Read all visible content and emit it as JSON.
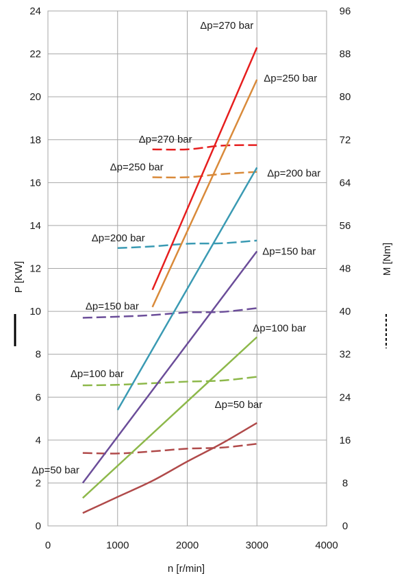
{
  "chart_data": {
    "type": "line",
    "xlabel": "n [r/min]",
    "ylabel_left": "P [KW]",
    "ylabel_right": "M [Nm]",
    "xlim": [
      0,
      4000
    ],
    "xticks": [
      0,
      1000,
      2000,
      3000,
      4000
    ],
    "ylim_left": [
      0,
      24
    ],
    "yticks_left": [
      0,
      2,
      4,
      6,
      8,
      10,
      12,
      14,
      16,
      18,
      20,
      22,
      24
    ],
    "ylim_right": [
      0,
      96
    ],
    "yticks_right": [
      0,
      8,
      16,
      24,
      32,
      40,
      48,
      56,
      64,
      72,
      80,
      88,
      96
    ],
    "grid": true,
    "legend": {
      "solid": "P [KW]",
      "dashed": "M [Nm]"
    },
    "colors": {
      "50": "#b04a4a",
      "100": "#8db84a",
      "150": "#6b4d99",
      "200": "#3a9ab3",
      "250": "#d98a3a",
      "270": "#e61e1e"
    },
    "power_series": [
      {
        "pressure": "50",
        "label": "Δp=50 bar",
        "x": [
          500,
          1000,
          1500,
          2000,
          2500,
          3000
        ],
        "y": [
          0.6,
          1.35,
          2.1,
          3.0,
          3.85,
          4.8
        ]
      },
      {
        "pressure": "100",
        "label": "Δp=100 bar",
        "x": [
          500,
          3000
        ],
        "y": [
          1.3,
          8.8
        ]
      },
      {
        "pressure": "150",
        "label": "Δp=150 bar",
        "x": [
          500,
          3000
        ],
        "y": [
          2.0,
          12.8
        ]
      },
      {
        "pressure": "200",
        "label": "Δp=200 bar",
        "x": [
          1000,
          3000
        ],
        "y": [
          5.4,
          16.7
        ]
      },
      {
        "pressure": "250",
        "label": "Δp=250 bar",
        "x": [
          1500,
          3000
        ],
        "y": [
          10.2,
          20.8
        ]
      },
      {
        "pressure": "270",
        "label": "Δp=270 bar",
        "x": [
          1500,
          3000
        ],
        "y": [
          11.0,
          22.3
        ]
      }
    ],
    "torque_series": [
      {
        "pressure": "50",
        "label": "Δp=50 bar",
        "x": [
          500,
          1000,
          1500,
          2000,
          2500,
          3000
        ],
        "y": [
          13.6,
          13.5,
          13.9,
          14.4,
          14.6,
          15.3
        ]
      },
      {
        "pressure": "100",
        "label": "Δp=100 bar",
        "x": [
          500,
          1000,
          1500,
          2000,
          2500,
          3000
        ],
        "y": [
          26.2,
          26.3,
          26.6,
          26.9,
          27.1,
          27.8
        ]
      },
      {
        "pressure": "150",
        "label": "Δp=150 bar",
        "x": [
          500,
          1000,
          1500,
          2000,
          2500,
          3000
        ],
        "y": [
          38.8,
          39.0,
          39.3,
          39.8,
          39.9,
          40.6
        ]
      },
      {
        "pressure": "200",
        "label": "Δp=200 bar",
        "x": [
          1000,
          1500,
          2000,
          2500,
          3000
        ],
        "y": [
          51.8,
          52.1,
          52.6,
          52.7,
          53.2
        ]
      },
      {
        "pressure": "250",
        "label": "Δp=250 bar",
        "x": [
          1500,
          2000,
          2500,
          3000
        ],
        "y": [
          65.0,
          65.0,
          65.6,
          66.0
        ]
      },
      {
        "pressure": "270",
        "label": "Δp=270 bar",
        "x": [
          1500,
          2000,
          2500,
          3000
        ],
        "y": [
          70.2,
          70.2,
          70.9,
          71.0
        ]
      }
    ]
  }
}
